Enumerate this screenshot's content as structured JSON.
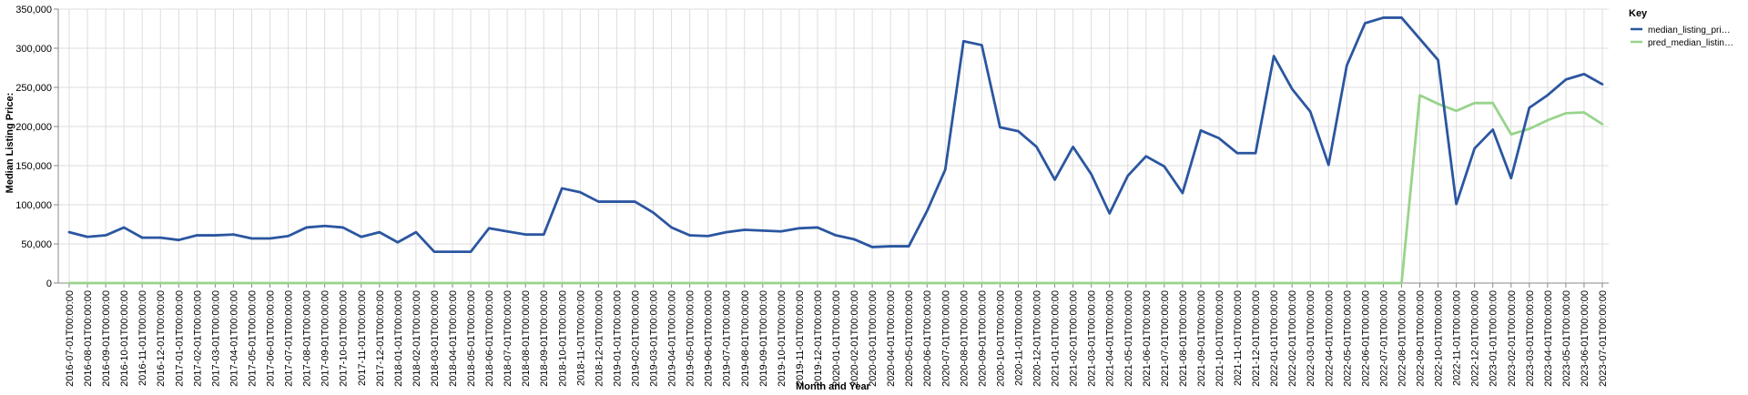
{
  "chart_data": {
    "type": "line",
    "title": "",
    "xlabel": "Month and Year",
    "ylabel": "Median Listing Price:",
    "ylim": [
      0,
      350000
    ],
    "y_ticks": [
      {
        "value": 0,
        "label": "0"
      },
      {
        "value": 50000,
        "label": "50,000"
      },
      {
        "value": 100000,
        "label": "100,000"
      },
      {
        "value": 150000,
        "label": "150,000"
      },
      {
        "value": 200000,
        "label": "200,000"
      },
      {
        "value": 250000,
        "label": "250,000"
      },
      {
        "value": 300000,
        "label": "300,000"
      },
      {
        "value": 350000,
        "label": "350,000"
      }
    ],
    "grid": true,
    "legend": {
      "title": "Key",
      "position": "top-right"
    },
    "categories": [
      "2016-07-01T00:00:00",
      "2016-08-01T00:00:00",
      "2016-09-01T00:00:00",
      "2016-10-01T00:00:00",
      "2016-11-01T00:00:00",
      "2016-12-01T00:00:00",
      "2017-01-01T00:00:00",
      "2017-02-01T00:00:00",
      "2017-03-01T00:00:00",
      "2017-04-01T00:00:00",
      "2017-05-01T00:00:00",
      "2017-06-01T00:00:00",
      "2017-07-01T00:00:00",
      "2017-08-01T00:00:00",
      "2017-09-01T00:00:00",
      "2017-10-01T00:00:00",
      "2017-11-01T00:00:00",
      "2017-12-01T00:00:00",
      "2018-01-01T00:00:00",
      "2018-02-01T00:00:00",
      "2018-03-01T00:00:00",
      "2018-04-01T00:00:00",
      "2018-05-01T00:00:00",
      "2018-06-01T00:00:00",
      "2018-07-01T00:00:00",
      "2018-08-01T00:00:00",
      "2018-09-01T00:00:00",
      "2018-10-01T00:00:00",
      "2018-11-01T00:00:00",
      "2018-12-01T00:00:00",
      "2019-01-01T00:00:00",
      "2019-02-01T00:00:00",
      "2019-03-01T00:00:00",
      "2019-04-01T00:00:00",
      "2019-05-01T00:00:00",
      "2019-06-01T00:00:00",
      "2019-07-01T00:00:00",
      "2019-08-01T00:00:00",
      "2019-09-01T00:00:00",
      "2019-10-01T00:00:00",
      "2019-11-01T00:00:00",
      "2019-12-01T00:00:00",
      "2020-01-01T00:00:00",
      "2020-02-01T00:00:00",
      "2020-03-01T00:00:00",
      "2020-04-01T00:00:00",
      "2020-05-01T00:00:00",
      "2020-06-01T00:00:00",
      "2020-07-01T00:00:00",
      "2020-08-01T00:00:00",
      "2020-09-01T00:00:00",
      "2020-10-01T00:00:00",
      "2020-11-01T00:00:00",
      "2020-12-01T00:00:00",
      "2021-01-01T00:00:00",
      "2021-02-01T00:00:00",
      "2021-03-01T00:00:00",
      "2021-04-01T00:00:00",
      "2021-05-01T00:00:00",
      "2021-06-01T00:00:00",
      "2021-07-01T00:00:00",
      "2021-08-01T00:00:00",
      "2021-09-01T00:00:00",
      "2021-10-01T00:00:00",
      "2021-11-01T00:00:00",
      "2021-12-01T00:00:00",
      "2022-01-01T00:00:00",
      "2022-02-01T00:00:00",
      "2022-03-01T00:00:00",
      "2022-04-01T00:00:00",
      "2022-05-01T00:00:00",
      "2022-06-01T00:00:00",
      "2022-07-01T00:00:00",
      "2022-08-01T00:00:00",
      "2022-09-01T00:00:00",
      "2022-10-01T00:00:00",
      "2022-11-01T00:00:00",
      "2022-12-01T00:00:00",
      "2023-01-01T00:00:00",
      "2023-02-01T00:00:00",
      "2023-03-01T00:00:00",
      "2023-04-01T00:00:00",
      "2023-05-01T00:00:00",
      "2023-06-01T00:00:00",
      "2023-07-01T00:00:00"
    ],
    "series": [
      {
        "name": "median_listing_pri…",
        "color": "#2b56a0",
        "values": [
          65000,
          59000,
          61000,
          71000,
          58000,
          58000,
          55000,
          61000,
          61000,
          62000,
          57000,
          57000,
          60000,
          71000,
          73000,
          71000,
          59000,
          65000,
          52000,
          65000,
          40000,
          40000,
          40000,
          70000,
          66000,
          62000,
          62000,
          121000,
          116000,
          104000,
          104000,
          104000,
          90000,
          71000,
          61000,
          60000,
          65000,
          68000,
          67000,
          66000,
          70000,
          71000,
          61000,
          56000,
          46000,
          47000,
          47000,
          92000,
          145000,
          309000,
          304000,
          199000,
          194000,
          174000,
          132000,
          174000,
          139000,
          89000,
          137000,
          162000,
          149000,
          115000,
          195000,
          185000,
          166000,
          166000,
          290000,
          248000,
          219000,
          151000,
          278000,
          332000,
          339000,
          339000,
          312000,
          285000,
          101000,
          172000,
          196000,
          134000,
          224000,
          240000,
          260000,
          267000,
          254000
        ]
      },
      {
        "name": "pred_median_listin…",
        "color": "#98d48c",
        "values": [
          0,
          0,
          0,
          0,
          0,
          0,
          0,
          0,
          0,
          0,
          0,
          0,
          0,
          0,
          0,
          0,
          0,
          0,
          0,
          0,
          0,
          0,
          0,
          0,
          0,
          0,
          0,
          0,
          0,
          0,
          0,
          0,
          0,
          0,
          0,
          0,
          0,
          0,
          0,
          0,
          0,
          0,
          0,
          0,
          0,
          0,
          0,
          0,
          0,
          0,
          0,
          0,
          0,
          0,
          0,
          0,
          0,
          0,
          0,
          0,
          0,
          0,
          0,
          0,
          0,
          0,
          0,
          0,
          0,
          0,
          0,
          0,
          0,
          0,
          240000,
          229000,
          220000,
          230000,
          230000,
          190000,
          197000,
          208000,
          217000,
          218000,
          203000
        ]
      }
    ]
  }
}
